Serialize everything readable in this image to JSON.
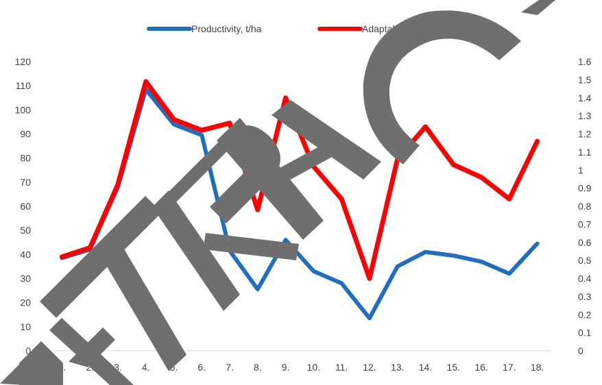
{
  "chart_data": {
    "type": "line",
    "categories": [
      "1.",
      "2.",
      "3.",
      "4.",
      "5.",
      "6.",
      "7.",
      "8.",
      "9.",
      "10.",
      "11.",
      "12.",
      "13.",
      "14.",
      "15.",
      "16.",
      "17.",
      "18."
    ],
    "series": [
      {
        "name": "Productivity, t/ha",
        "axis": "left",
        "color": "#1f6fc1",
        "values": [
          38.5,
          42,
          68,
          108.5,
          94,
          89.5,
          41.5,
          25.5,
          46,
          33,
          28,
          13.5,
          35,
          41,
          39.5,
          37,
          32,
          44.5
        ]
      },
      {
        "name": "Adaptability coefficient",
        "axis": "right",
        "color": "#ff0000",
        "values": [
          0.52,
          0.57,
          0.92,
          1.49,
          1.28,
          1.22,
          1.26,
          0.78,
          1.4,
          1.02,
          0.84,
          0.4,
          1.06,
          1.24,
          1.03,
          0.96,
          0.84,
          1.16
        ]
      }
    ],
    "y_left": {
      "ylim": [
        0,
        120
      ],
      "ticks": [
        "0",
        "10",
        "20",
        "30",
        "40",
        "50",
        "60",
        "70",
        "80",
        "90",
        "100",
        "110",
        "120"
      ]
    },
    "y_right": {
      "ylim": [
        0,
        1.6
      ],
      "ticks": [
        "0",
        "0.1",
        "0.2",
        "0.3",
        "0.4",
        "0.5",
        "0.6",
        "0.7",
        "0.8",
        "0.9",
        "1",
        "1.1",
        "1.2",
        "1.3",
        "1.4",
        "1.5",
        "1.6"
      ]
    },
    "legend_position": "top-center",
    "grid": false,
    "title": "",
    "xlabel": "",
    "ylabel": ""
  },
  "watermark": {
    "text": "EXTRACT",
    "color": "#6f6f6f"
  }
}
